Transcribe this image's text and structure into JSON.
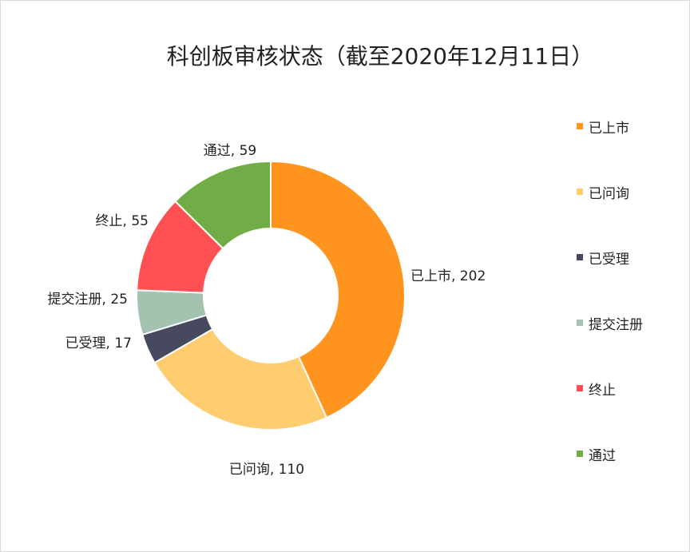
{
  "chart_data": {
    "type": "pie",
    "subtype": "doughnut",
    "title": "科创板审核状态（截至2020年12月11日）",
    "categories": [
      "已上市",
      "已问询",
      "已受理",
      "提交注册",
      "终止",
      "通过"
    ],
    "values": [
      202,
      110,
      17,
      25,
      55,
      59
    ],
    "colors": [
      "#FF951F",
      "#FFCC70",
      "#474A5E",
      "#A3C2B0",
      "#FF5154",
      "#70AD47"
    ],
    "data_labels": [
      "已上市, 202",
      "已问询, 110",
      "已受理, 17",
      "提交注册, 25",
      "终止, 55",
      "通过, 59"
    ],
    "legend": {
      "position": "right",
      "entries": [
        "已上市",
        "已问询",
        "已受理",
        "提交注册",
        "终止",
        "通过"
      ]
    }
  }
}
